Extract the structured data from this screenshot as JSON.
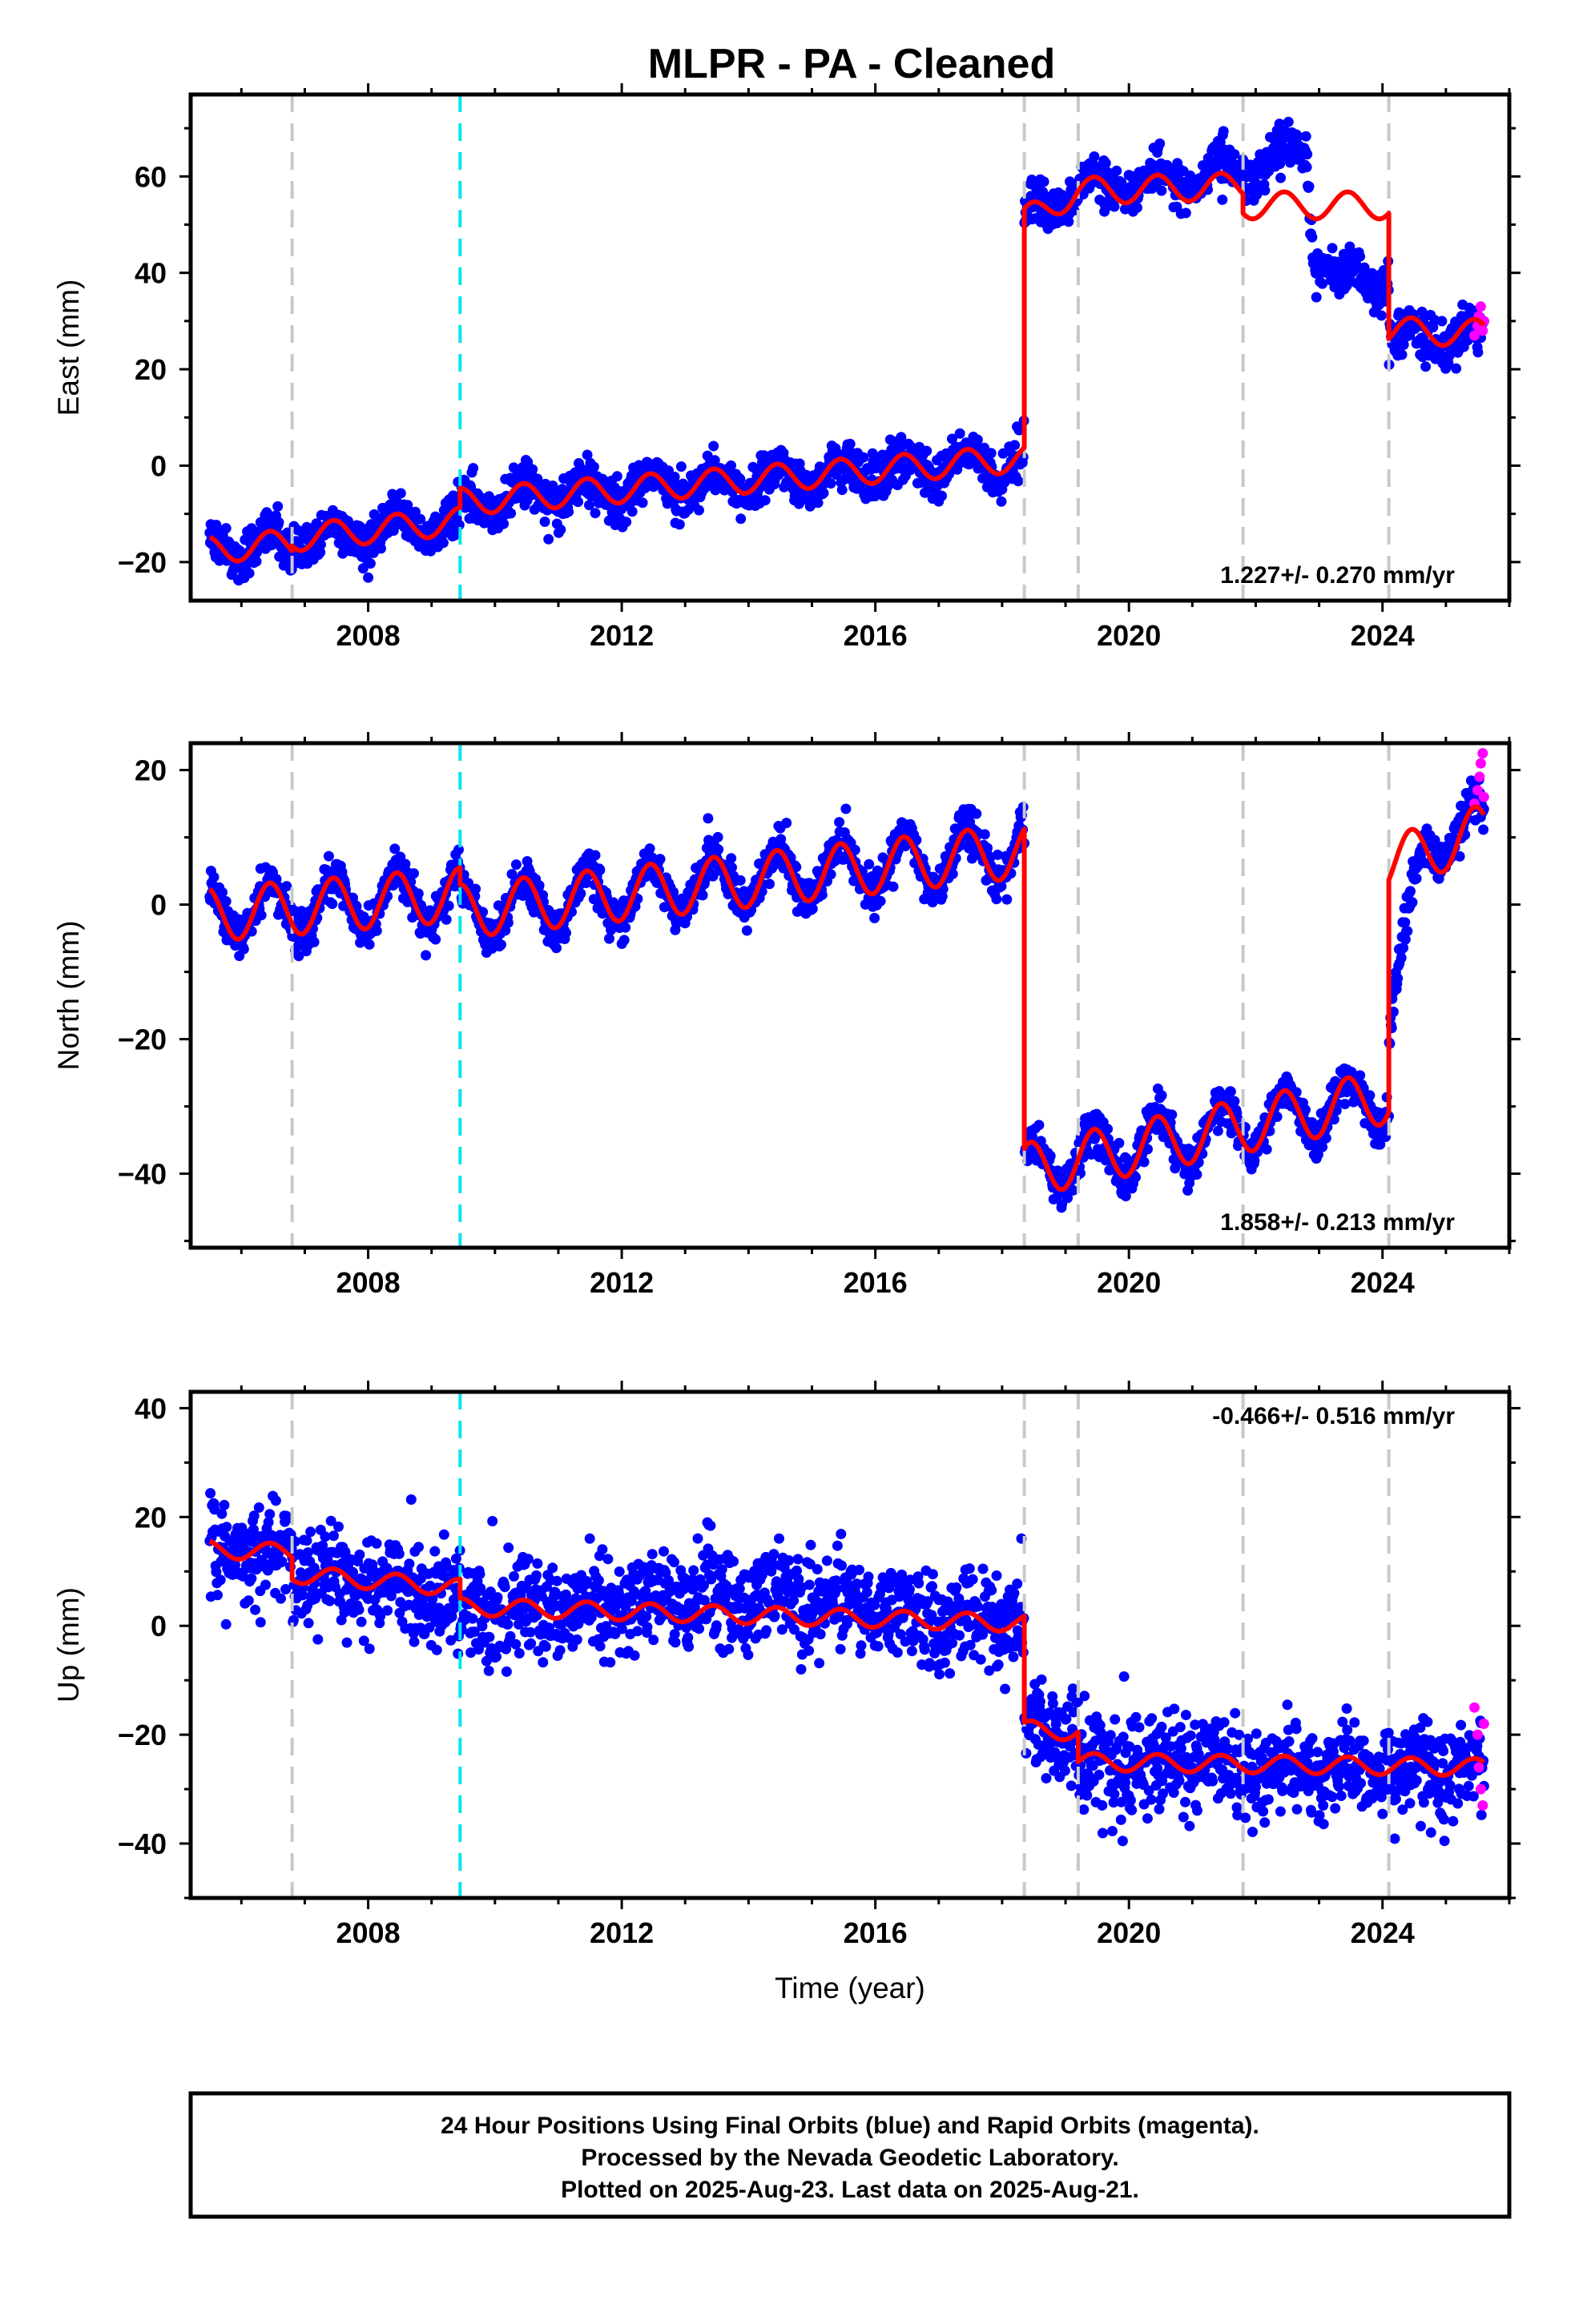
{
  "figure_title": "MLPR  - PA - Cleaned",
  "caption": {
    "line1": "24 Hour Positions Using Final Orbits (blue) and Rapid Orbits (magenta).",
    "line2": "Processed by the Nevada Geodetic Laboratory.",
    "line3": "Plotted on 2025-Aug-23. Last data on 2025-Aug-21."
  },
  "colors": {
    "final_orbits": "#0000ff",
    "rapid_orbits": "#ff00ff",
    "model": "#ff0000",
    "equipment_change": "#c8c8c8",
    "earthquake": "#00e5ee",
    "frame": "#000000"
  },
  "chart_data": [
    {
      "type": "scatter",
      "ylabel": "East (mm)",
      "xlabel": "",
      "xlim": [
        2005.2,
        2026.0
      ],
      "ylim": [
        -28,
        77
      ],
      "x_ticks": [
        2008,
        2012,
        2016,
        2020,
        2024
      ],
      "y_ticks": [
        -20,
        0,
        20,
        40,
        60
      ],
      "rate_text": "1.227+/- 0.270 mm/yr",
      "rate_position": "bottom-right",
      "grid": false,
      "vlines_gray": [
        2006.8,
        2018.35,
        2019.2,
        2021.8,
        2024.1
      ],
      "vlines_cyan": [
        2009.45
      ],
      "model_trend": [
        [
          2005.5,
          -17.5
        ],
        [
          2006.8,
          -16
        ],
        [
          2006.8,
          -15
        ],
        [
          2009.45,
          -11.5
        ],
        [
          2009.45,
          -7.5
        ],
        [
          2018.35,
          1.5
        ],
        [
          2018.35,
          51
        ],
        [
          2019.2,
          57
        ],
        [
          2019.2,
          57
        ],
        [
          2021.8,
          58
        ],
        [
          2021.8,
          54
        ],
        [
          2024.1,
          54
        ],
        [
          2024.1,
          28
        ],
        [
          2025.6,
          27.5
        ]
      ],
      "seasonal_amp": 2.8,
      "data_trend": [
        [
          2005.5,
          -17
        ],
        [
          2006.8,
          -16
        ],
        [
          2006.8,
          -15
        ],
        [
          2009.45,
          -11.5
        ],
        [
          2009.45,
          -7.5
        ],
        [
          2018.35,
          1.5
        ],
        [
          2018.35,
          51
        ],
        [
          2019.2,
          57
        ],
        [
          2019.2,
          57
        ],
        [
          2021.8,
          61
        ],
        [
          2022.8,
          66
        ],
        [
          2022.9,
          45
        ],
        [
          2023.4,
          38
        ],
        [
          2024.1,
          40
        ],
        [
          2024.1,
          27
        ],
        [
          2025.6,
          27
        ]
      ],
      "scatter_sd": 2.3,
      "rapid_points": [
        [
          2025.45,
          27
        ],
        [
          2025.5,
          29
        ],
        [
          2025.52,
          31
        ],
        [
          2025.55,
          33
        ],
        [
          2025.58,
          28
        ],
        [
          2025.6,
          30
        ]
      ]
    },
    {
      "type": "scatter",
      "ylabel": "North (mm)",
      "xlabel": "",
      "xlim": [
        2005.2,
        2026.0
      ],
      "ylim": [
        -51,
        24
      ],
      "x_ticks": [
        2008,
        2012,
        2016,
        2020,
        2024
      ],
      "y_ticks": [
        -40,
        -20,
        0,
        20
      ],
      "rate_text": "1.858+/- 0.213 mm/yr",
      "rate_position": "bottom-right",
      "grid": false,
      "vlines_gray": [
        2006.8,
        2018.35,
        2019.2,
        2021.8,
        2024.1
      ],
      "vlines_cyan": [
        2009.45
      ],
      "model_trend": [
        [
          2005.5,
          -1.5
        ],
        [
          2009.45,
          1.5
        ],
        [
          2009.45,
          -1
        ],
        [
          2018.35,
          8
        ],
        [
          2018.35,
          -39.5
        ],
        [
          2024.1,
          -28.5
        ],
        [
          2024.1,
          6
        ],
        [
          2025.6,
          11
        ]
      ],
      "seasonal_amp": 4.0,
      "data_trend": [
        [
          2005.5,
          -1.5
        ],
        [
          2009.45,
          1.5
        ],
        [
          2009.45,
          -1
        ],
        [
          2018.35,
          8
        ],
        [
          2018.35,
          -39.5
        ],
        [
          2024.1,
          -28.5
        ],
        [
          2024.1,
          -18
        ],
        [
          2024.7,
          10
        ],
        [
          2025.6,
          12
        ]
      ],
      "scatter_sd": 1.5,
      "rapid_points": [
        [
          2025.45,
          15
        ],
        [
          2025.5,
          17
        ],
        [
          2025.53,
          19
        ],
        [
          2025.55,
          21
        ],
        [
          2025.58,
          22.5
        ],
        [
          2025.6,
          16
        ]
      ]
    },
    {
      "type": "scatter",
      "ylabel": "Up (mm)",
      "xlabel": "Time (year)",
      "xlim": [
        2005.2,
        2026.0
      ],
      "ylim": [
        -50,
        43
      ],
      "x_ticks": [
        2008,
        2012,
        2016,
        2020,
        2024
      ],
      "y_ticks": [
        -40,
        -20,
        0,
        20,
        40
      ],
      "rate_text": "-0.466+/- 0.516 mm/yr",
      "rate_position": "top-right",
      "grid": false,
      "vlines_gray": [
        2006.8,
        2018.35,
        2019.2,
        2021.8,
        2024.1
      ],
      "vlines_cyan": [
        2009.45
      ],
      "model_trend": [
        [
          2005.5,
          14
        ],
        [
          2006.8,
          13.5
        ],
        [
          2006.8,
          9.5
        ],
        [
          2009.45,
          7
        ],
        [
          2009.45,
          3.5
        ],
        [
          2018.35,
          0.5
        ],
        [
          2018.35,
          -19
        ],
        [
          2019.2,
          -19.5
        ],
        [
          2019.2,
          -25
        ],
        [
          2025.6,
          -26
        ]
      ],
      "seasonal_amp": 1.6,
      "data_trend": [
        [
          2005.5,
          14
        ],
        [
          2006.8,
          13.5
        ],
        [
          2006.8,
          10
        ],
        [
          2009.45,
          5
        ],
        [
          2009.45,
          2
        ],
        [
          2013.5,
          6
        ],
        [
          2018.35,
          0
        ],
        [
          2018.35,
          -19
        ],
        [
          2019.2,
          -21
        ],
        [
          2019.2,
          -25
        ],
        [
          2025.6,
          -27
        ]
      ],
      "scatter_sd": 4.3,
      "rapid_points": [
        [
          2025.45,
          -15
        ],
        [
          2025.5,
          -20
        ],
        [
          2025.52,
          -26
        ],
        [
          2025.55,
          -30
        ],
        [
          2025.58,
          -33
        ],
        [
          2025.6,
          -18
        ]
      ]
    }
  ]
}
